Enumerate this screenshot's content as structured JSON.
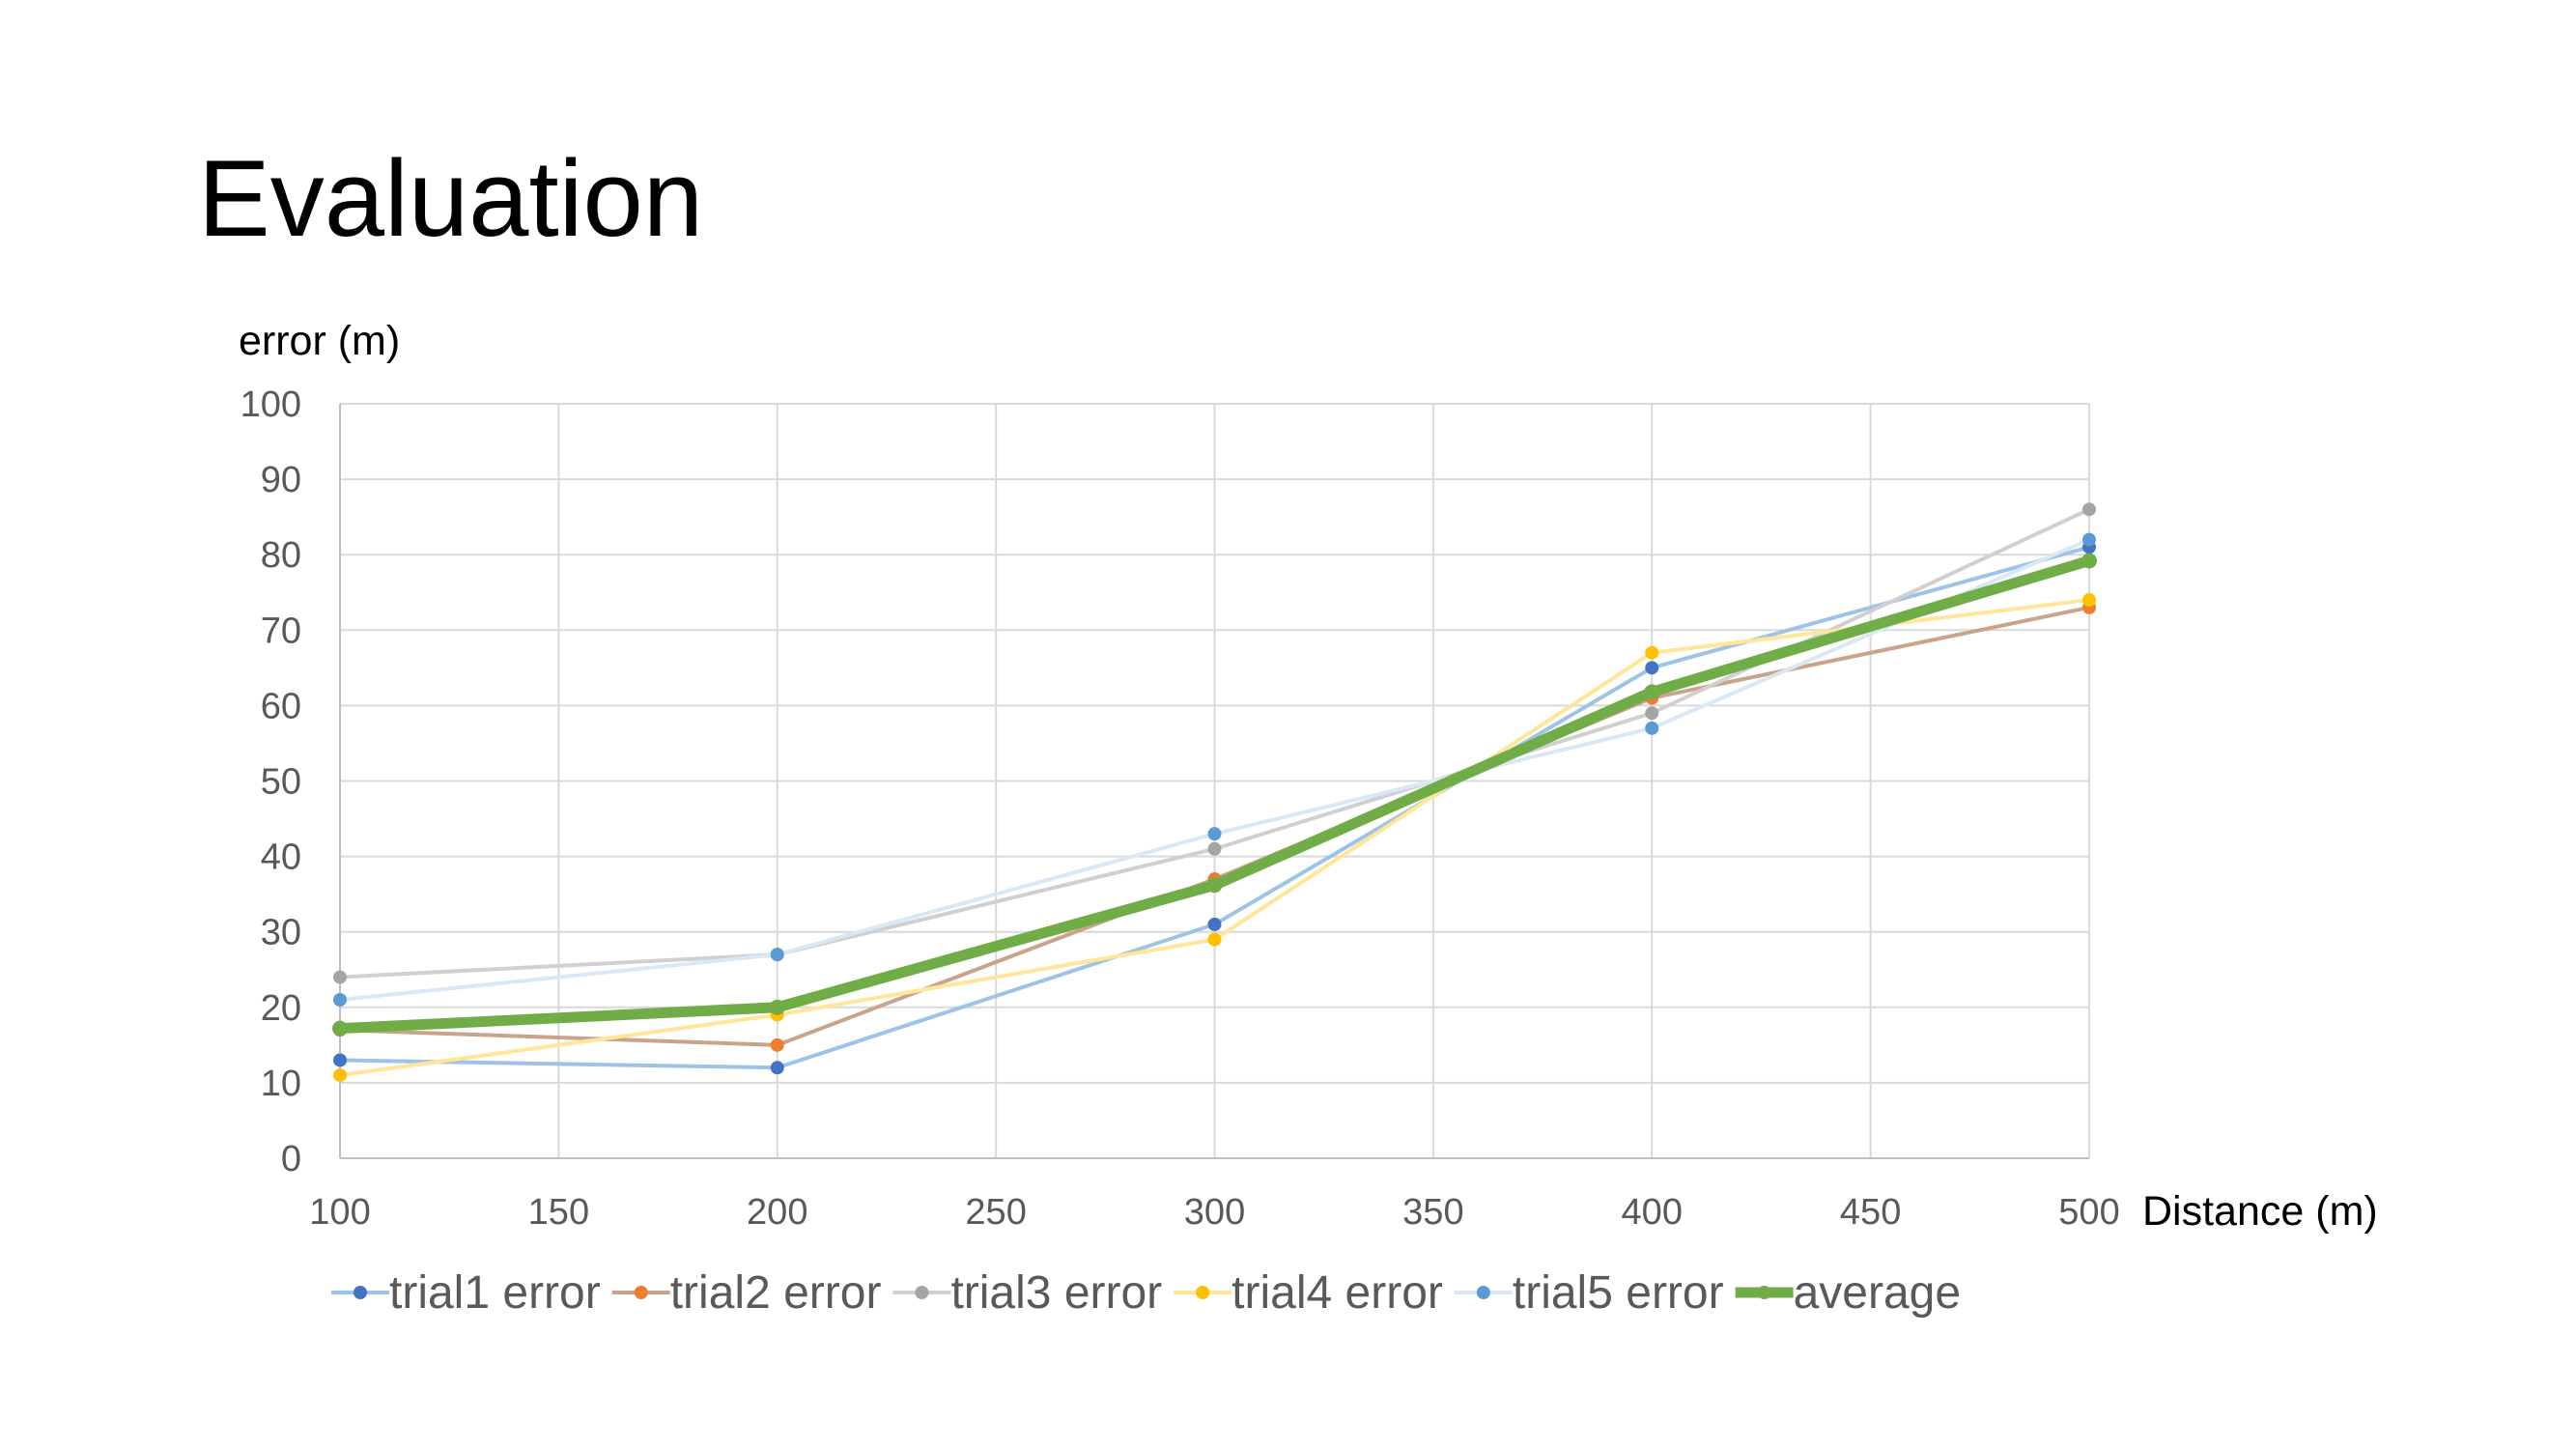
{
  "slide": {
    "title": "Evaluation"
  },
  "chart_data": {
    "type": "line",
    "ylabel": "error (m)",
    "xlabel": "Distance (m)",
    "x": [
      100,
      200,
      300,
      400,
      500
    ],
    "xlim": [
      100,
      500
    ],
    "xticks": [
      100,
      150,
      200,
      250,
      300,
      350,
      400,
      450,
      500
    ],
    "ylim": [
      0,
      100
    ],
    "yticks": [
      0,
      10,
      20,
      30,
      40,
      50,
      60,
      70,
      80,
      90,
      100
    ],
    "grid": true,
    "legend_position": "bottom",
    "series": [
      {
        "name": "trial1 error",
        "values": [
          13,
          12,
          31,
          65,
          81
        ],
        "line_color": "#9DC3E6",
        "marker_color": "#4472C4",
        "emphasis": false
      },
      {
        "name": "trial2 error",
        "values": [
          17,
          15,
          37,
          61,
          73
        ],
        "line_color": "#C9A48B",
        "marker_color": "#ED7D31",
        "emphasis": false
      },
      {
        "name": "trial3 error",
        "values": [
          24,
          27,
          41,
          59,
          86
        ],
        "line_color": "#D0D0D0",
        "marker_color": "#A5A5A5",
        "emphasis": false
      },
      {
        "name": "trial4 error",
        "values": [
          11,
          19,
          29,
          67,
          74
        ],
        "line_color": "#FFE699",
        "marker_color": "#FFC000",
        "emphasis": false
      },
      {
        "name": "trial5 error",
        "values": [
          21,
          27,
          43,
          57,
          82
        ],
        "line_color": "#DAE8F5",
        "marker_color": "#5B9BD5",
        "emphasis": false
      },
      {
        "name": "average",
        "values": [
          17.2,
          20,
          36.2,
          61.8,
          79.2
        ],
        "line_color": "#70AD47",
        "marker_color": "#70AD47",
        "emphasis": true
      }
    ]
  }
}
